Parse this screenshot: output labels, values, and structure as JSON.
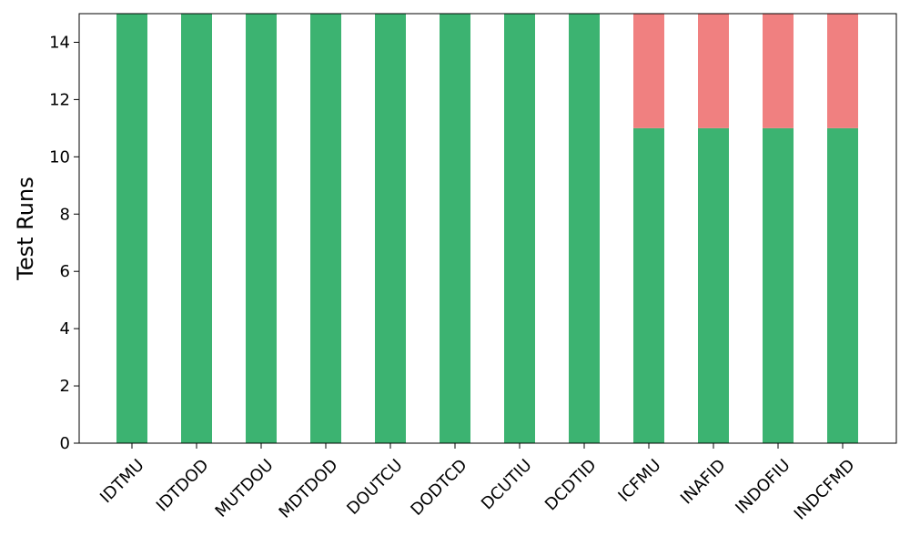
{
  "chart_data": {
    "type": "bar",
    "stacked": true,
    "title": "",
    "xlabel": "",
    "ylabel": "Test Runs",
    "ylim": [
      0,
      15
    ],
    "yticks": [
      0,
      2,
      4,
      6,
      8,
      10,
      12,
      14
    ],
    "grid": false,
    "legend": "none",
    "categories": [
      "IDTMU",
      "IDTDOD",
      "MUTDOU",
      "MDTDOD",
      "DOUTCU",
      "DODTCD",
      "DCUTIU",
      "DCDTID",
      "ICFMU",
      "INAFID",
      "INDOFIU",
      "INDCFMD"
    ],
    "series": [
      {
        "color": "#3cb371",
        "values": [
          15,
          15,
          15,
          15,
          15,
          15,
          15,
          15,
          11,
          11,
          11,
          11
        ]
      },
      {
        "color": "#f08080",
        "values": [
          0,
          0,
          0,
          0,
          0,
          0,
          0,
          0,
          4,
          4,
          4,
          4
        ]
      }
    ]
  }
}
